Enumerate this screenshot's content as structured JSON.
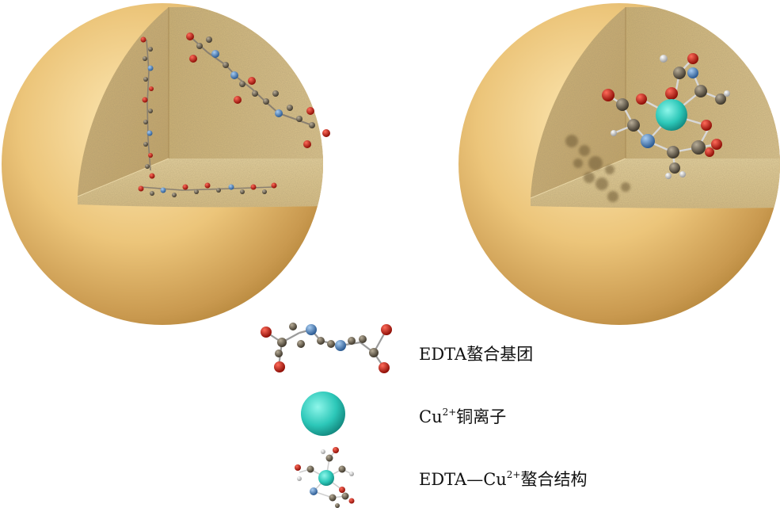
{
  "legend": {
    "edta": "EDTA螯合基团",
    "cu_prefix": "Cu",
    "cu_sup": "2+",
    "cu_suffix": "铜离子",
    "complex_prefix": "EDTA—Cu",
    "complex_sup": "2+",
    "complex_suffix": "螯合结构"
  },
  "colors": {
    "sphere": "#ecc57a",
    "sphere_shadow": "#b8893e",
    "cut_face": "#d8c28c",
    "oxygen": "#c41a0e",
    "nitrogen": "#3f7bbd",
    "carbon": "#6d6250",
    "hydrogen": "#eeeeee",
    "copper": "#2cc7b8"
  }
}
